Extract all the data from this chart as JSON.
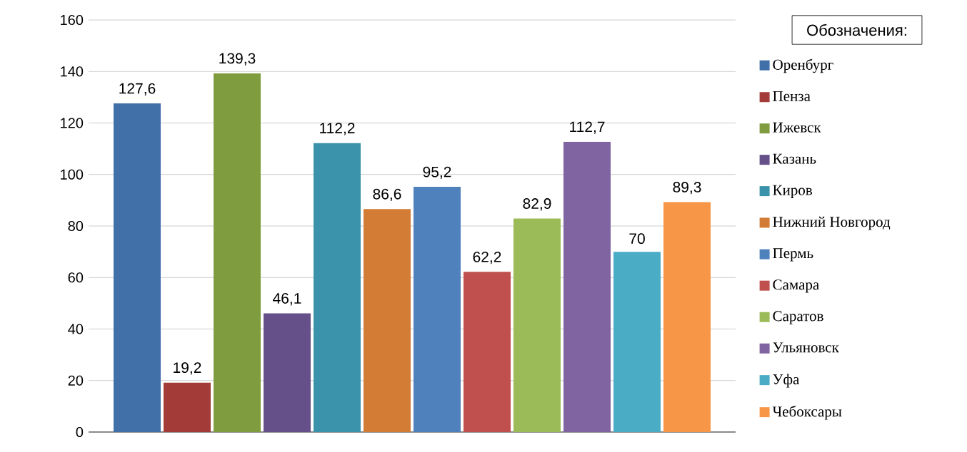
{
  "chart_data": {
    "type": "bar",
    "legend_title": "Обозначения:",
    "categories": [
      null
    ],
    "ylim": [
      0,
      160
    ],
    "yticks": [
      0,
      20,
      40,
      60,
      80,
      100,
      120,
      140,
      160
    ],
    "grid": "y",
    "legend": "right",
    "series": [
      {
        "name": "Оренбург",
        "color": "#4170a8",
        "values": [
          127.6
        ],
        "value_labels": [
          "127,6"
        ]
      },
      {
        "name": "Пенза",
        "color": "#a33b38",
        "values": [
          19.2
        ],
        "value_labels": [
          "19,2"
        ]
      },
      {
        "name": "Ижевск",
        "color": "#7f9d3f",
        "values": [
          139.3
        ],
        "value_labels": [
          "139,3"
        ]
      },
      {
        "name": "Казань",
        "color": "#66508a",
        "values": [
          46.1
        ],
        "value_labels": [
          "46,1"
        ]
      },
      {
        "name": "Киров",
        "color": "#3a93ab",
        "values": [
          112.2
        ],
        "value_labels": [
          "112,2"
        ]
      },
      {
        "name": "Нижний Новгород",
        "color": "#d27c35",
        "values": [
          86.6
        ],
        "value_labels": [
          "86,6"
        ]
      },
      {
        "name": "Пермь",
        "color": "#4f81bd",
        "values": [
          95.2
        ],
        "value_labels": [
          "95,2"
        ]
      },
      {
        "name": "Самара",
        "color": "#c0504d",
        "values": [
          62.2
        ],
        "value_labels": [
          "62,2"
        ]
      },
      {
        "name": "Саратов",
        "color": "#9bbb59",
        "values": [
          82.9
        ],
        "value_labels": [
          "82,9"
        ]
      },
      {
        "name": "Ульяновск",
        "color": "#8064a2",
        "values": [
          112.7
        ],
        "value_labels": [
          "112,7"
        ]
      },
      {
        "name": "Уфа",
        "color": "#4bacc6",
        "values": [
          70
        ],
        "value_labels": [
          "70"
        ]
      },
      {
        "name": "Чебоксары",
        "color": "#f79646",
        "values": [
          89.3
        ],
        "value_labels": [
          "89,3"
        ]
      }
    ]
  }
}
